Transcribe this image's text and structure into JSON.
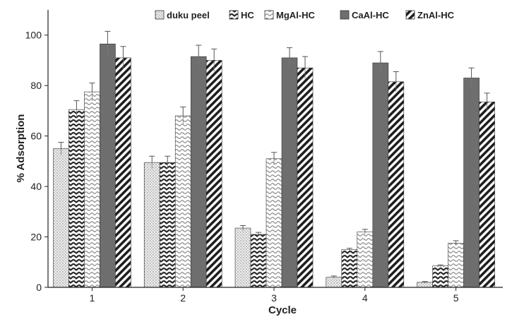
{
  "chart_data": {
    "type": "bar",
    "title": "",
    "xlabel": "Cycle",
    "ylabel": "% Adsorption",
    "categories": [
      "1",
      "2",
      "3",
      "4",
      "5"
    ],
    "ylim": [
      0,
      110
    ],
    "yticks": [
      "0",
      "20",
      "40",
      "60",
      "80",
      "100"
    ],
    "legend_position": "top",
    "grid": false,
    "series": [
      {
        "name": "duku peel",
        "values": [
          55,
          49.5,
          23.5,
          4,
          2
        ],
        "errors": [
          2.5,
          2.5,
          1,
          0.5,
          0.3
        ],
        "pattern": "dots",
        "color": "#e6e6e6"
      },
      {
        "name": "HC",
        "values": [
          70.5,
          49.5,
          21,
          15,
          8.5
        ],
        "errors": [
          3.5,
          2.5,
          0.8,
          0.5,
          0.4
        ],
        "pattern": "zigzag",
        "color": "#3a3a3a"
      },
      {
        "name": "MgAl-HC",
        "values": [
          77.5,
          68,
          51,
          22,
          17.5
        ],
        "errors": [
          3.5,
          3.5,
          2.5,
          1,
          1
        ],
        "pattern": "wave",
        "color": "#c8c8c8"
      },
      {
        "name": "CaAl-HC",
        "values": [
          96.5,
          91.5,
          91,
          89,
          83
        ],
        "errors": [
          5,
          4.5,
          4,
          4.5,
          4
        ],
        "pattern": "solid",
        "color": "#6e6e6e"
      },
      {
        "name": "ZnAl-HC",
        "values": [
          91,
          90,
          87,
          81.5,
          73.5
        ],
        "errors": [
          4.5,
          4.5,
          4.5,
          4,
          3.5
        ],
        "pattern": "diagonal",
        "color": "#202020"
      }
    ]
  }
}
